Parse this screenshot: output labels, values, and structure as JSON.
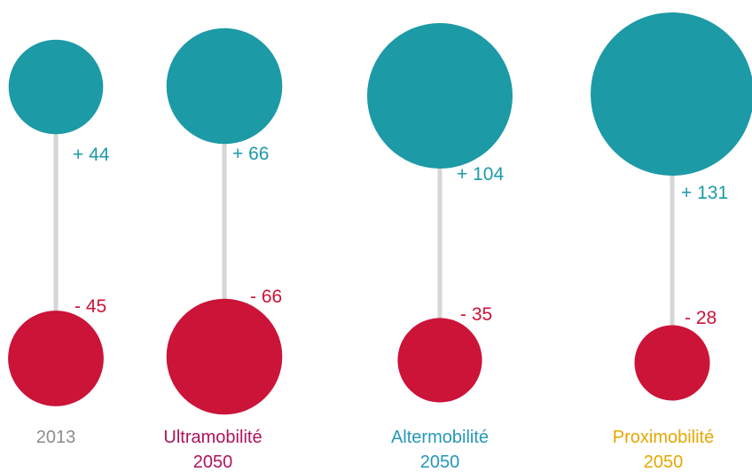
{
  "chart_data": {
    "type": "bubble",
    "title": "",
    "xlabel": "",
    "ylabel": "",
    "scenarios": [
      {
        "label_line1": "2013",
        "label_line2": "",
        "label_color": "#8c8c8c",
        "positive_label": "+ 44",
        "negative_label": "- 45",
        "positive": 44,
        "negative": 45
      },
      {
        "label_line1": "Ultramobilité",
        "label_line2": "2050",
        "label_color": "#b0125c",
        "positive_label": "+ 66",
        "negative_label": "- 66",
        "positive": 66,
        "negative": 66
      },
      {
        "label_line1": "Altermobilité",
        "label_line2": "2050",
        "label_color": "#2398b8",
        "positive_label": "+ 104",
        "negative_label": "- 35",
        "positive": 104,
        "negative": 35
      },
      {
        "label_line1": "Proximobilité",
        "label_line2": "2050",
        "label_color": "#e6a700",
        "positive_label": "+ 131",
        "negative_label": "- 28",
        "positive": 131,
        "negative": 28
      }
    ],
    "colors": {
      "positive_bubble": "#1c9aa5",
      "negative_bubble": "#cc1338",
      "positive_text": "#1c9aa5",
      "negative_text": "#cc1338",
      "connector": "#d6d6d6"
    }
  }
}
